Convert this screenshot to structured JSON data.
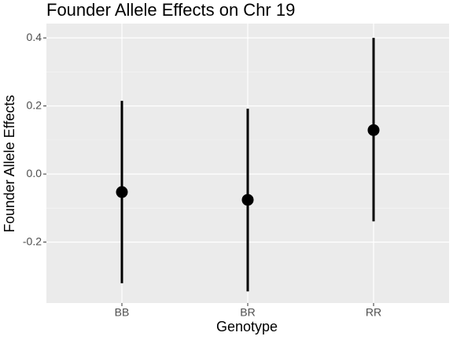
{
  "chart_data": {
    "type": "pointrange",
    "title": "Founder Allele Effects on Chr 19",
    "x_label": "Genotype",
    "y_label": "Founder Allele Effects",
    "categories": [
      "BB",
      "BR",
      "RR"
    ],
    "values": [
      -0.053,
      -0.076,
      0.129
    ],
    "lower": [
      -0.321,
      -0.345,
      -0.139
    ],
    "upper": [
      0.215,
      0.192,
      0.4
    ],
    "color": "#000000",
    "ylim": [
      -0.379,
      0.442
    ],
    "yticks": [
      -0.2,
      {
        "value": 0,
        "label": "0.0"
      },
      0.2,
      0.4
    ],
    "grid": true
  }
}
